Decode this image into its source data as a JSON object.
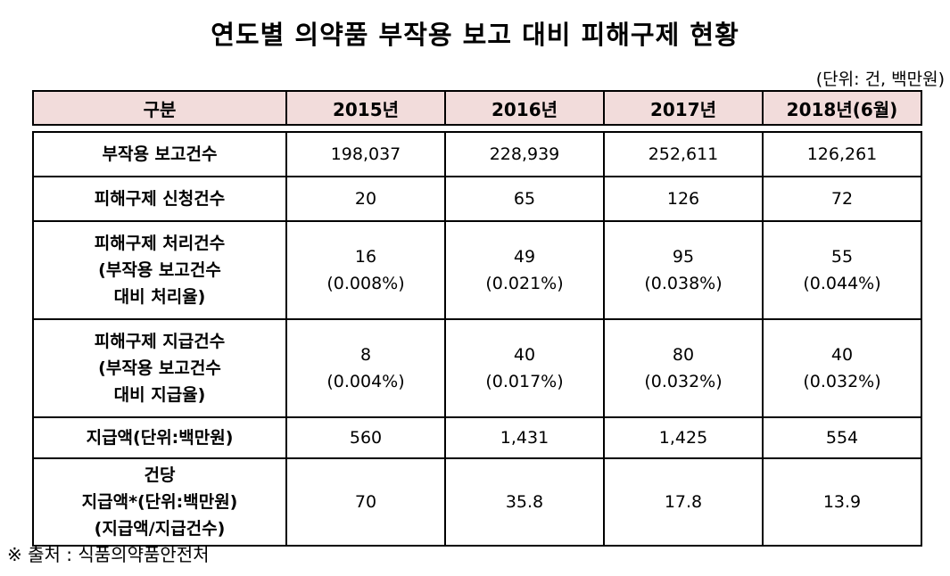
{
  "title": "연도별 의약품 부작용 보고 대비 피해구제 현황",
  "unit": "(단위: 건, 백만원)",
  "table": {
    "headers": [
      "구분",
      "2015년",
      "2016년",
      "2017년",
      "2018년(6월)"
    ],
    "rows": [
      {
        "label": [
          "부작용 보고건수"
        ],
        "values": [
          [
            "198,037"
          ],
          [
            "228,939"
          ],
          [
            "252,611"
          ],
          [
            "126,261"
          ]
        ]
      },
      {
        "label": [
          "피해구제 신청건수"
        ],
        "values": [
          [
            "20"
          ],
          [
            "65"
          ],
          [
            "126"
          ],
          [
            "72"
          ]
        ]
      },
      {
        "label": [
          "피해구제 처리건수",
          "(부작용 보고건수",
          "대비 처리율)"
        ],
        "values": [
          [
            "16",
            "(0.008%)"
          ],
          [
            "49",
            "(0.021%)"
          ],
          [
            "95",
            "(0.038%)"
          ],
          [
            "55",
            "(0.044%)"
          ]
        ]
      },
      {
        "label": [
          "피해구제 지급건수",
          "(부작용 보고건수",
          "대비 지급율)"
        ],
        "values": [
          [
            "8",
            "(0.004%)"
          ],
          [
            "40",
            "(0.017%)"
          ],
          [
            "80",
            "(0.032%)"
          ],
          [
            "40",
            "(0.032%)"
          ]
        ]
      },
      {
        "label": [
          "지급액(단위:백만원)"
        ],
        "values": [
          [
            "560"
          ],
          [
            "1,431"
          ],
          [
            "1,425"
          ],
          [
            "554"
          ]
        ]
      },
      {
        "label": [
          "건당",
          "지급액*(단위:백만원)",
          "(지급액/지급건수)"
        ],
        "values": [
          [
            "70"
          ],
          [
            "35.8"
          ],
          [
            "17.8"
          ],
          [
            "13.9"
          ]
        ]
      }
    ]
  },
  "source": "※ 출처 : 식품의약품안전처"
}
